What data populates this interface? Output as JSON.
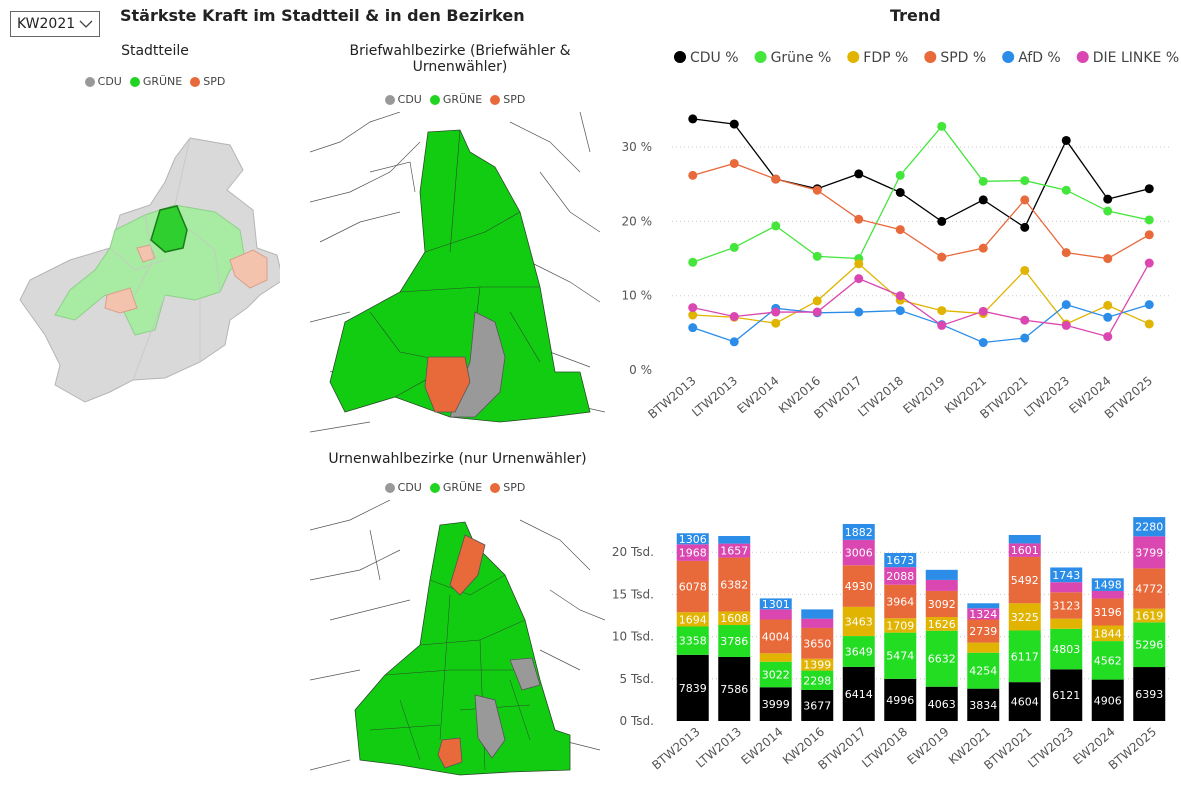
{
  "filter": {
    "selected": "KW2021"
  },
  "header": {
    "title": "Stärkste Kraft im Stadtteil & in den Bezirken",
    "trend_title": "Trend"
  },
  "maps": {
    "stadtteile": {
      "title": "Stadtteile"
    },
    "briefwahl": {
      "title_line1": "Briefwahlbezirke (Briefwähler &",
      "title_line2": "Urnenwähler)"
    },
    "urnenwahl": {
      "title": "Urnenwahlbezirke (nur Urnenwähler)"
    },
    "legend": [
      {
        "label": "CDU",
        "color": "#999999"
      },
      {
        "label": "GRÜNE",
        "color": "#22d422"
      },
      {
        "label": "SPD",
        "color": "#e8693a"
      }
    ]
  },
  "chart_data": [
    {
      "type": "line",
      "title": "Trend",
      "categories": [
        "BTW2013",
        "LTW2013",
        "EW2014",
        "KW2016",
        "BTW2017",
        "LTW2018",
        "EW2019",
        "KW2021",
        "BTW2021",
        "LTW2023",
        "EW2024",
        "BTW2025"
      ],
      "y_ticks": [
        "0 %",
        "10 %",
        "20 %",
        "30 %"
      ],
      "ylim": [
        0,
        35
      ],
      "grid": true,
      "legend_position": "top",
      "series": [
        {
          "name": "CDU %",
          "color": "#000000",
          "values": [
            33.8,
            33.1,
            25.7,
            24.4,
            26.4,
            23.9,
            20.0,
            22.9,
            19.2,
            30.9,
            23.0,
            24.4
          ]
        },
        {
          "name": "Grüne %",
          "color": "#44e63c",
          "values": [
            14.5,
            16.5,
            19.4,
            15.3,
            15.0,
            26.2,
            32.8,
            25.4,
            25.5,
            24.2,
            21.4,
            20.2
          ]
        },
        {
          "name": "FDP %",
          "color": "#e0b400",
          "values": [
            7.4,
            7.1,
            6.3,
            9.3,
            14.3,
            9.4,
            8.0,
            7.6,
            13.4,
            6.2,
            8.7,
            6.2
          ]
        },
        {
          "name": "SPD %",
          "color": "#e8693a",
          "values": [
            26.2,
            27.8,
            25.7,
            24.2,
            20.3,
            18.9,
            15.2,
            16.4,
            22.9,
            15.8,
            15.0,
            18.2
          ]
        },
        {
          "name": "AfD %",
          "color": "#2b8de8",
          "values": [
            5.7,
            3.8,
            8.3,
            7.7,
            7.8,
            8.0,
            6.1,
            3.7,
            4.3,
            8.8,
            7.1,
            8.8
          ]
        },
        {
          "name": "DIE LINKE %",
          "color": "#db47b0",
          "values": [
            8.4,
            7.2,
            7.8,
            7.8,
            12.3,
            10.0,
            6.0,
            7.9,
            6.7,
            6.0,
            4.5,
            14.4
          ]
        }
      ]
    },
    {
      "type": "bar",
      "stacked": true,
      "categories": [
        "BTW2013",
        "LTW2013",
        "EW2014",
        "KW2016",
        "BTW2017",
        "LTW2018",
        "EW2019",
        "KW2021",
        "BTW2021",
        "LTW2023",
        "EW2024",
        "BTW2025"
      ],
      "y_ticks": [
        "0 Tsd.",
        "5 Tsd.",
        "10 Tsd.",
        "15 Tsd.",
        "20 Tsd."
      ],
      "ylim": [
        0,
        25000
      ],
      "grid": true,
      "series": [
        {
          "name": "CDU",
          "color": "#000000",
          "values": [
            7839,
            7586,
            3999,
            3677,
            6414,
            4996,
            4063,
            3834,
            4604,
            6121,
            4906,
            6393
          ]
        },
        {
          "name": "Grüne",
          "color": "#22dd22",
          "values": [
            3358,
            3786,
            3022,
            2298,
            3649,
            5474,
            6632,
            4254,
            6117,
            4803,
            4562,
            5296
          ]
        },
        {
          "name": "FDP",
          "color": "#e0b400",
          "values": [
            1694,
            1608,
            1000,
            1399,
            3463,
            1709,
            1626,
            1200,
            3225,
            1200,
            1844,
            1619
          ]
        },
        {
          "name": "SPD",
          "color": "#e8693a",
          "values": [
            6078,
            6382,
            4004,
            3650,
            4930,
            3964,
            3092,
            2739,
            5492,
            3123,
            3196,
            4772
          ]
        },
        {
          "name": "DIE LINKE",
          "color": "#db47b0",
          "values": [
            1968,
            1657,
            1200,
            1100,
            3006,
            2088,
            1300,
            1324,
            1601,
            1200,
            900,
            3799
          ]
        },
        {
          "name": "AfD",
          "color": "#2b8de8",
          "values": [
            1306,
            900,
            1301,
            1100,
            1882,
            1673,
            1200,
            600,
            1000,
            1743,
            1498,
            2280
          ]
        }
      ],
      "labels": [
        [
          "7839",
          "3358",
          "1694",
          "6078",
          "1968",
          "1306"
        ],
        [
          "7586",
          "3786",
          "1608",
          "6382",
          "1657",
          ""
        ],
        [
          "3999",
          "3022",
          "",
          "4004",
          "",
          "1301"
        ],
        [
          "3677",
          "2298",
          "1399",
          "3650",
          "",
          ""
        ],
        [
          "6414",
          "3649",
          "3463",
          "4930",
          "3006",
          "1882"
        ],
        [
          "4996",
          "5474",
          "1709",
          "3964",
          "2088",
          "1673"
        ],
        [
          "4063",
          "6632",
          "1626",
          "3092",
          "",
          ""
        ],
        [
          "3834",
          "4254",
          "",
          "2739",
          "1324",
          ""
        ],
        [
          "4604",
          "6117",
          "3225",
          "5492",
          "1601",
          ""
        ],
        [
          "6121",
          "4803",
          "",
          "3123",
          "",
          "1743"
        ],
        [
          "4906",
          "4562",
          "1844",
          "3196",
          "",
          "1498"
        ],
        [
          "6393",
          "5296",
          "1619",
          "4772",
          "3799",
          "2280"
        ]
      ]
    }
  ]
}
